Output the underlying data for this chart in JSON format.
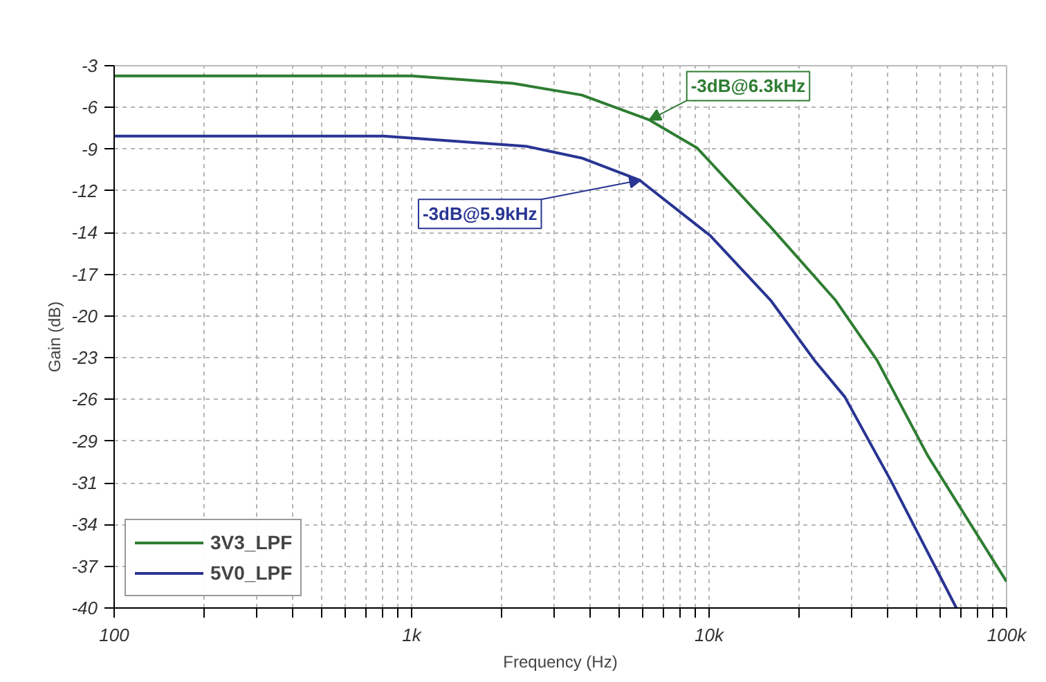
{
  "chart_data": {
    "type": "line",
    "xlabel": "Frequency (Hz)",
    "ylabel": "Gain (dB)",
    "log": "x",
    "xlim": [
      100,
      100000
    ],
    "xticks": [
      {
        "value": 100,
        "label": "100"
      },
      {
        "value": 200,
        "label": null
      },
      {
        "value": 300,
        "label": null
      },
      {
        "value": 400,
        "label": null
      },
      {
        "value": 500,
        "label": null
      },
      {
        "value": 600,
        "label": null
      },
      {
        "value": 700,
        "label": null
      },
      {
        "value": 800,
        "label": null
      },
      {
        "value": 900,
        "label": null
      },
      {
        "value": 1000,
        "label": "1k"
      },
      {
        "value": 2000,
        "label": null
      },
      {
        "value": 3000,
        "label": null
      },
      {
        "value": 4000,
        "label": null
      },
      {
        "value": 5000,
        "label": null
      },
      {
        "value": 6000,
        "label": null
      },
      {
        "value": 7000,
        "label": null
      },
      {
        "value": 8000,
        "label": null
      },
      {
        "value": 9000,
        "label": null
      },
      {
        "value": 10000,
        "label": "10k"
      },
      {
        "value": 20000,
        "label": null
      },
      {
        "value": 30000,
        "label": null
      },
      {
        "value": 40000,
        "label": null
      },
      {
        "value": 50000,
        "label": null
      },
      {
        "value": 60000,
        "label": null
      },
      {
        "value": 70000,
        "label": null
      },
      {
        "value": 80000,
        "label": null
      },
      {
        "value": 90000,
        "label": null
      },
      {
        "value": 100000,
        "label": "100k"
      }
    ],
    "ylim": [
      -40,
      -3
    ],
    "yticks": [
      -3,
      {
        "value": -5.85,
        "label": "-6"
      },
      {
        "value": -8.69,
        "label": "-9"
      },
      {
        "value": -11.54,
        "label": "-12"
      },
      {
        "value": -14.38,
        "label": "-14"
      },
      {
        "value": -17.23,
        "label": "-17"
      },
      {
        "value": -20.08,
        "label": "-20"
      },
      {
        "value": -22.92,
        "label": "-23"
      },
      {
        "value": -25.77,
        "label": "-26"
      },
      {
        "value": -28.62,
        "label": "-29"
      },
      {
        "value": -31.46,
        "label": "-31"
      },
      {
        "value": -34.31,
        "label": "-34"
      },
      {
        "value": -37.15,
        "label": "-37"
      },
      -40
    ],
    "grid": true,
    "legend": "bottom left",
    "marker": "none",
    "line_style": "solid",
    "series": [
      {
        "name": "3V3_LPF",
        "color": "#2e7d32",
        "x": [
          100,
          1000,
          2190,
          3730,
          6300,
          9100,
          16100,
          26600,
          36700,
          54300,
          100000
        ],
        "values": [
          -3.7,
          -3.7,
          -4.2,
          -5.0,
          -6.7,
          -8.6,
          -14.0,
          -19.0,
          -23.1,
          -29.6,
          -38.2
        ]
      },
      {
        "name": "5V0_LPF",
        "color": "#283593",
        "x": [
          100,
          805,
          2430,
          3730,
          5830,
          10100,
          16100,
          22600,
          28600,
          40800,
          67800
        ],
        "values": [
          -7.8,
          -7.8,
          -8.5,
          -9.3,
          -10.8,
          -14.6,
          -19.0,
          -23.1,
          -25.6,
          -31.3,
          -40.0
        ]
      }
    ],
    "annotations": [
      {
        "text": "-3dB@6.3kHz",
        "x": 6300,
        "y": -6.7
      },
      {
        "text": "-3dB@5.9kHz",
        "x": 5900,
        "y": -10.8
      }
    ]
  }
}
